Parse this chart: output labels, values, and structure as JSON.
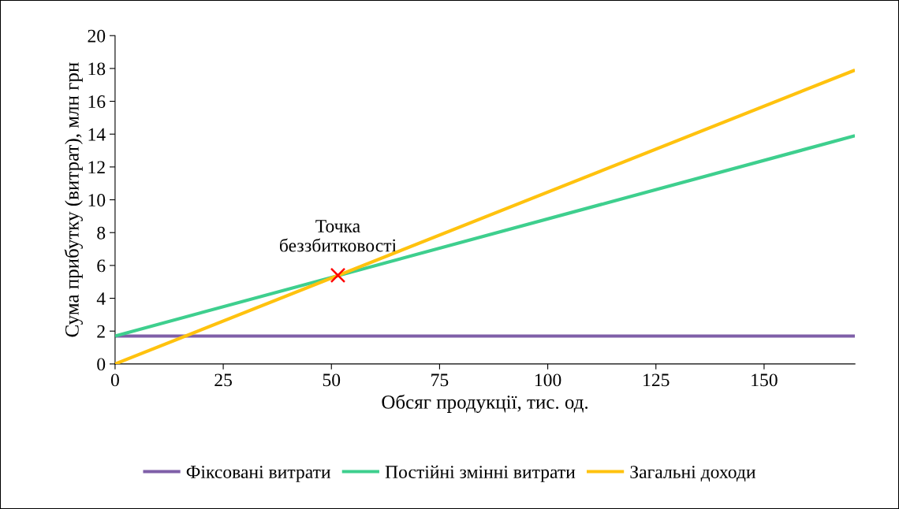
{
  "chart_data": {
    "type": "line",
    "xlabel": "Обсяг продукції, тис. од.",
    "ylabel": "Сума прибутку (витрат), млн грн",
    "xlim": [
      0,
      171
    ],
    "xticks": [
      0,
      25,
      50,
      75,
      100,
      125,
      150
    ],
    "ylim": [
      0,
      20
    ],
    "yticks": [
      0,
      2,
      4,
      6,
      8,
      10,
      12,
      14,
      16,
      18,
      20
    ],
    "grid": false,
    "legend": "bottom",
    "marker": "none",
    "line_style": "solid",
    "series": [
      {
        "name": "Фіксовані витрати",
        "color": "#7f5fa8",
        "x": [
          0,
          171
        ],
        "values": [
          1.7,
          1.7
        ]
      },
      {
        "name": "Постійні змінні витрати",
        "color": "#3ecf8e",
        "x": [
          0,
          171
        ],
        "values": [
          1.7,
          13.9
        ]
      },
      {
        "name": "Загальні доходи",
        "color": "#ffc20e",
        "x": [
          0,
          171
        ],
        "values": [
          0,
          17.9
        ]
      },
      {
        "type": "scatter",
        "marker": "cross",
        "color": "#ff0000",
        "x": [
          51.5
        ],
        "values": [
          5.4
        ]
      }
    ],
    "annotations": [
      {
        "text": "Точка\nбеззбитковості",
        "x": 51.5,
        "y": 5.4
      }
    ]
  }
}
